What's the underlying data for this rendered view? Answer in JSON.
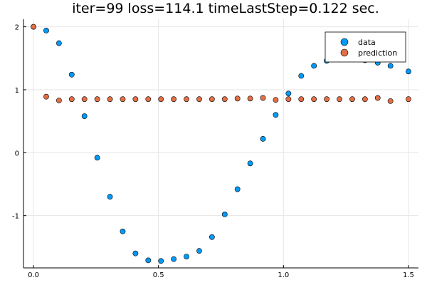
{
  "chart_data": {
    "type": "scatter",
    "title": "iter=99  loss=114.1 timeLastStep=0.122 sec.",
    "xlabel": "",
    "ylabel": "",
    "xlim": [
      -0.04,
      1.54
    ],
    "ylim": [
      -1.83,
      2.12
    ],
    "xticks": [
      0.0,
      0.5,
      1.0,
      1.5
    ],
    "xtick_labels": [
      "0.0",
      "0.5",
      "1.0",
      "1.5"
    ],
    "yticks": [
      -1,
      0,
      1,
      2
    ],
    "ytick_labels": [
      "-1",
      "0",
      "1",
      "2"
    ],
    "grid": true,
    "legend_position": "top-right",
    "series": [
      {
        "name": "data",
        "color": "#009af9",
        "points": [
          [
            0.0,
            2.0
          ],
          [
            0.051,
            1.94
          ],
          [
            0.102,
            1.74
          ],
          [
            0.153,
            1.24
          ],
          [
            0.204,
            0.58
          ],
          [
            0.255,
            -0.08
          ],
          [
            0.306,
            -0.7
          ],
          [
            0.357,
            -1.25
          ],
          [
            0.408,
            -1.6
          ],
          [
            0.459,
            -1.71
          ],
          [
            0.51,
            -1.72
          ],
          [
            0.561,
            -1.69
          ],
          [
            0.612,
            -1.65
          ],
          [
            0.663,
            -1.56
          ],
          [
            0.714,
            -1.34
          ],
          [
            0.765,
            -0.98
          ],
          [
            0.816,
            -0.58
          ],
          [
            0.867,
            -0.17
          ],
          [
            0.918,
            0.22
          ],
          [
            0.969,
            0.6
          ],
          [
            1.02,
            0.94
          ],
          [
            1.071,
            1.22
          ],
          [
            1.122,
            1.38
          ],
          [
            1.173,
            1.46
          ],
          [
            1.224,
            1.5
          ],
          [
            1.275,
            1.5
          ],
          [
            1.326,
            1.47
          ],
          [
            1.377,
            1.43
          ],
          [
            1.428,
            1.38
          ],
          [
            1.5,
            1.29
          ]
        ]
      },
      {
        "name": "prediction",
        "color": "#e26f46",
        "points": [
          [
            0.0,
            2.0
          ],
          [
            0.051,
            0.89
          ],
          [
            0.102,
            0.83
          ],
          [
            0.153,
            0.85
          ],
          [
            0.204,
            0.85
          ],
          [
            0.255,
            0.85
          ],
          [
            0.306,
            0.85
          ],
          [
            0.357,
            0.85
          ],
          [
            0.408,
            0.85
          ],
          [
            0.459,
            0.85
          ],
          [
            0.51,
            0.85
          ],
          [
            0.561,
            0.85
          ],
          [
            0.612,
            0.85
          ],
          [
            0.663,
            0.85
          ],
          [
            0.714,
            0.85
          ],
          [
            0.765,
            0.85
          ],
          [
            0.816,
            0.86
          ],
          [
            0.867,
            0.86
          ],
          [
            0.918,
            0.87
          ],
          [
            0.969,
            0.84
          ],
          [
            1.02,
            0.85
          ],
          [
            1.071,
            0.85
          ],
          [
            1.122,
            0.85
          ],
          [
            1.173,
            0.85
          ],
          [
            1.224,
            0.85
          ],
          [
            1.275,
            0.85
          ],
          [
            1.326,
            0.85
          ],
          [
            1.377,
            0.87
          ],
          [
            1.428,
            0.82
          ],
          [
            1.5,
            0.85
          ]
        ]
      }
    ]
  }
}
